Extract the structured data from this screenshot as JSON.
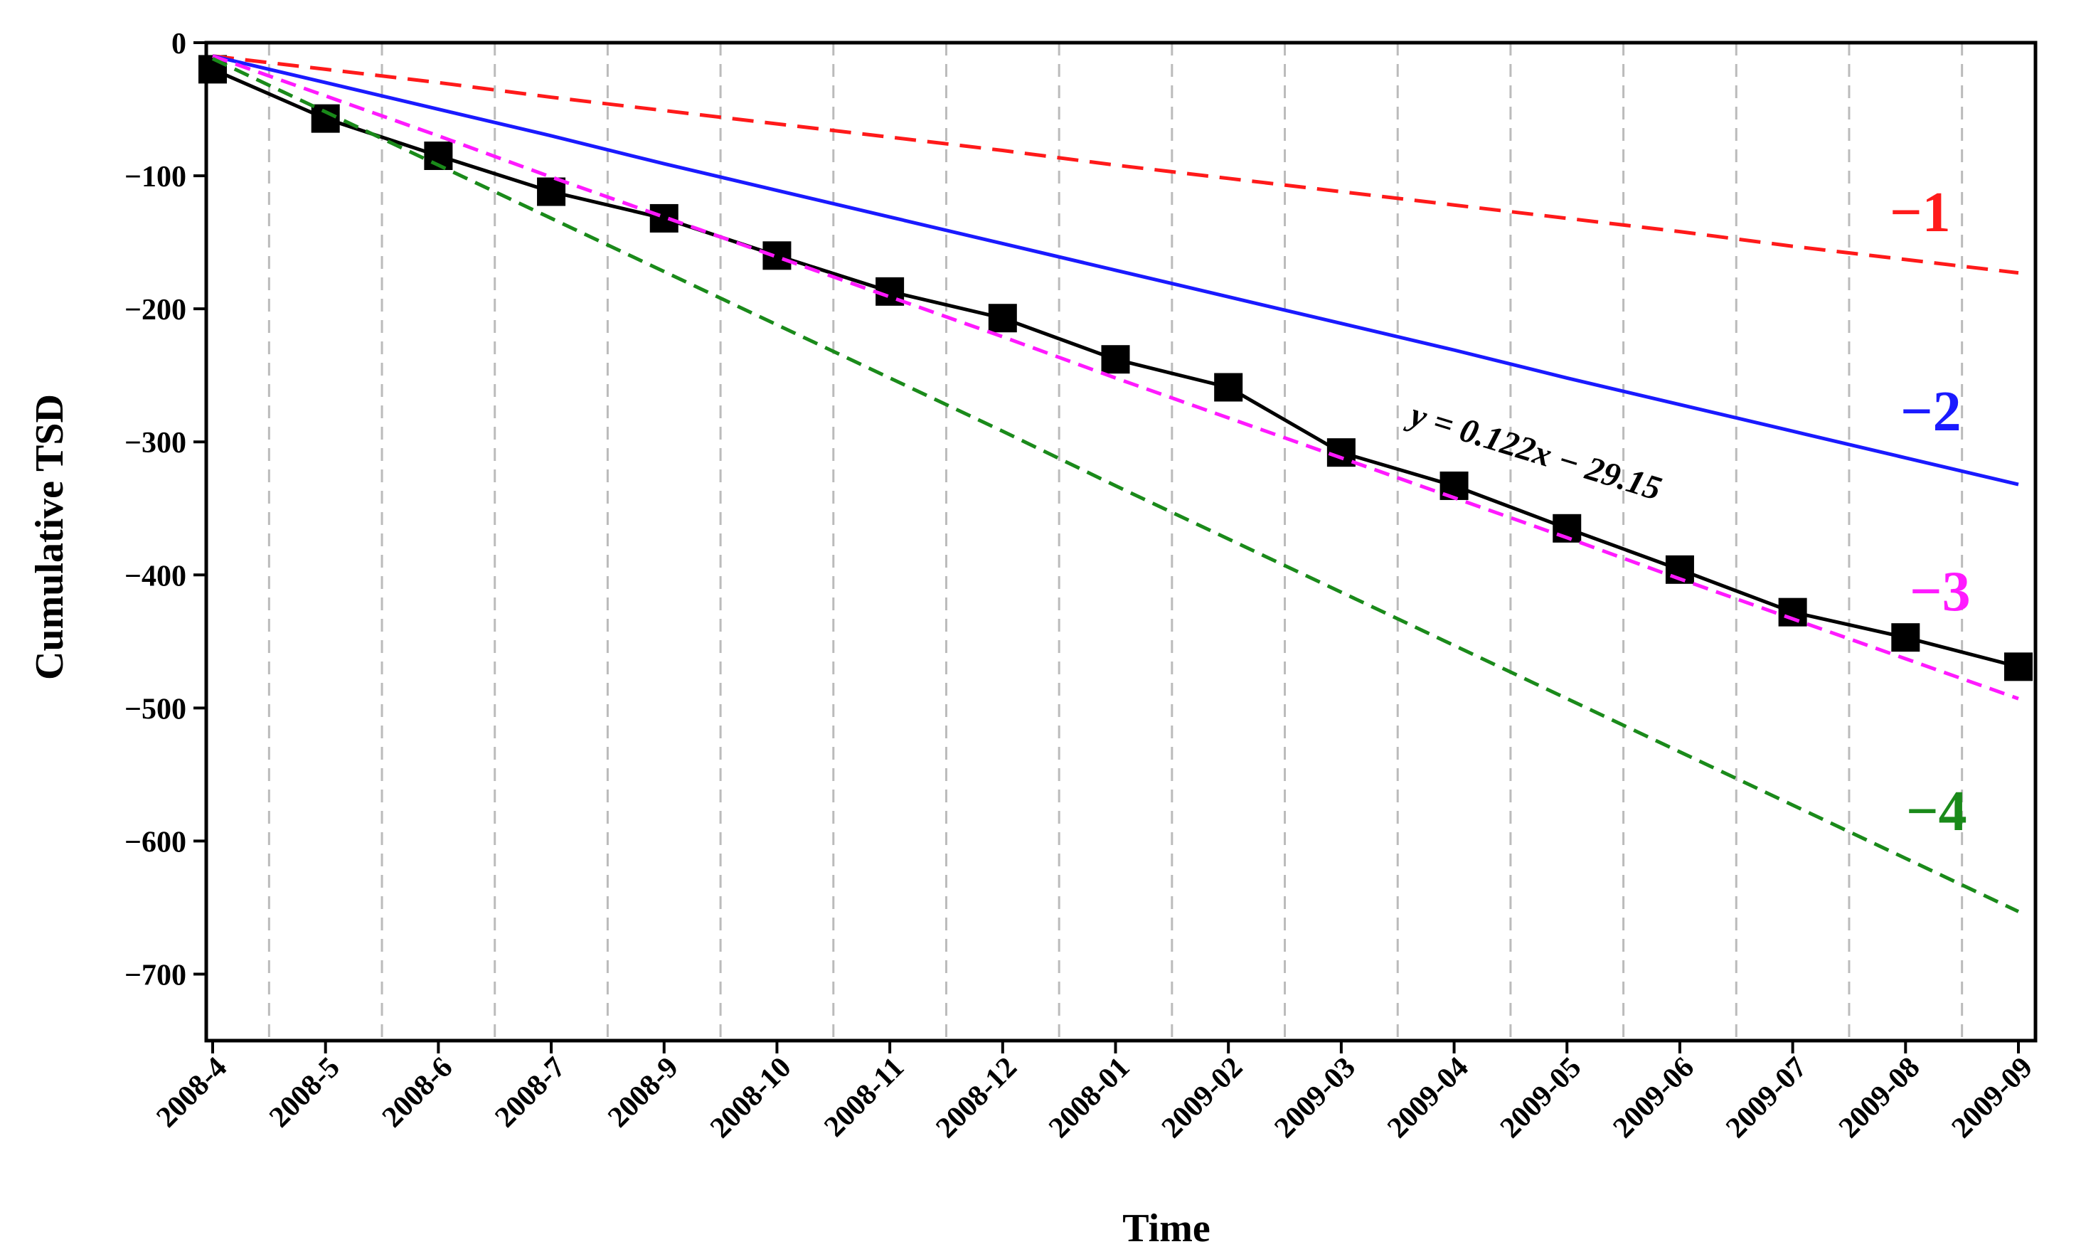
{
  "chart_data": {
    "type": "line",
    "x_label": "Time",
    "y_label": "Cumulative TSD",
    "annotation": "y = 0.122x − 29.15",
    "categories": [
      "2008-4",
      "2008-5",
      "2008-6",
      "2008-7",
      "2008-9",
      "2008-10",
      "2008-11",
      "2008-12",
      "2008-01",
      "2009-02",
      "2009-03",
      "2009-04",
      "2009-05",
      "2009-06",
      "2009-07",
      "2009-08",
      "2009-09"
    ],
    "series": [
      {
        "color": "#000000",
        "style": "solid",
        "marker": "square",
        "values": [
          -20,
          -57,
          -85,
          -112,
          -132,
          -160,
          -187,
          -207,
          -238,
          -259,
          -308,
          -333,
          -365,
          -396,
          -428,
          -447,
          -469
        ]
      },
      {
        "name": "−1",
        "color": "#ff1a1a",
        "style": "dashed",
        "values": [
          -10,
          -20,
          -30,
          -41,
          -51,
          -61,
          -71,
          -81,
          -92,
          -102,
          -112,
          -122,
          -132,
          -142,
          -153,
          -163,
          -173
        ]
      },
      {
        "name": "−2",
        "color": "#1a1aff",
        "style": "solid",
        "values": [
          -10,
          -30,
          -50,
          -70,
          -91,
          -111,
          -131,
          -151,
          -171,
          -191,
          -211,
          -231,
          -252,
          -272,
          -292,
          -312,
          -332
        ]
      },
      {
        "name": "−3",
        "color": "#ff1aff",
        "style": "dashed",
        "values": [
          -10,
          -40,
          -70,
          -101,
          -131,
          -161,
          -191,
          -221,
          -252,
          -282,
          -312,
          -342,
          -372,
          -403,
          -433,
          -463,
          -493
        ]
      },
      {
        "name": "−4",
        "color": "#1a8a1a",
        "style": "dashed",
        "values": [
          -12,
          -52,
          -92,
          -132,
          -172,
          -212,
          -252,
          -292,
          -333,
          -373,
          -413,
          -453,
          -493,
          -533,
          -573,
          -613,
          -653
        ]
      }
    ],
    "ylim": [
      -750,
      0
    ],
    "yticks": [
      0,
      {
        "value": -100,
        "label": "−100"
      },
      {
        "value": -200,
        "label": "−200"
      },
      {
        "value": -300,
        "label": "−300"
      },
      {
        "value": -400,
        "label": "−400"
      },
      {
        "value": -500,
        "label": "−500"
      },
      {
        "value": -600,
        "label": "−600"
      },
      {
        "value": -700,
        "label": "−700"
      }
    ],
    "category_grid": true
  }
}
